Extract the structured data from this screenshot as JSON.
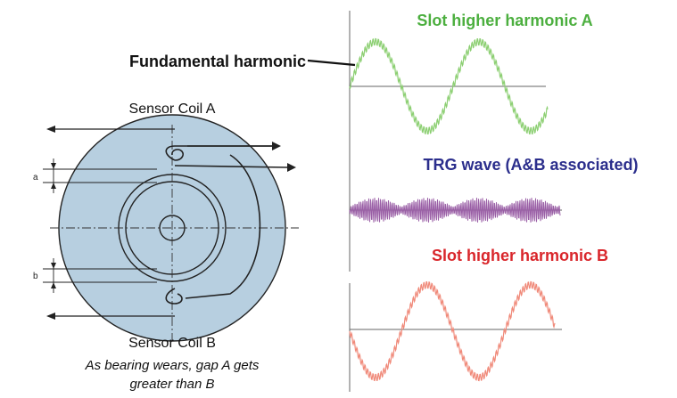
{
  "labels": {
    "fundamental": "Fundamental harmonic",
    "slot_a": "Slot higher harmonic A",
    "trg": "TRG wave (A&B associated)",
    "slot_b": "Slot higher harmonic B",
    "coil_a": "Sensor Coil A",
    "coil_b": "Sensor Coil B",
    "gap_a": "a",
    "gap_b": "b",
    "caption_line1": "As bearing wears, gap A gets",
    "caption_line2": "greater than B"
  },
  "colors": {
    "slot_a": "#4caf3f",
    "trg": "#2b2e8c",
    "slot_b": "#d9262b",
    "wave_a": "#8ccf72",
    "wave_trg": "#9a5fa6",
    "wave_b": "#f08a7a",
    "disc": "#b7cfe0",
    "ink": "#111111"
  }
}
